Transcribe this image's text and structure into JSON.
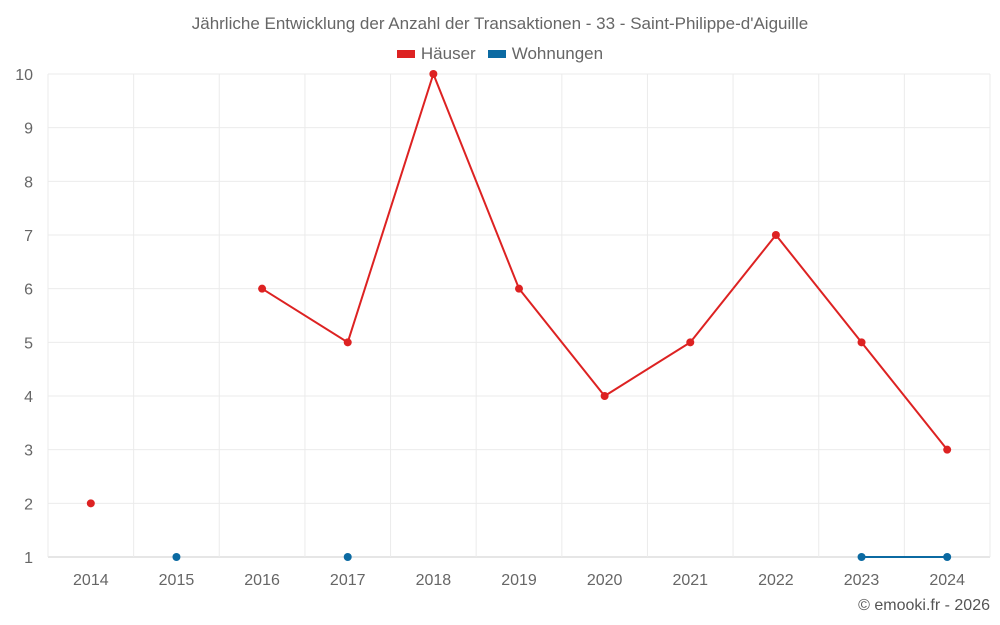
{
  "chart_data": {
    "type": "line",
    "title": "Jährliche Entwicklung der Anzahl der Transaktionen - 33 - Saint-Philippe-d'Aiguille",
    "categories": [
      "2014",
      "2015",
      "2016",
      "2017",
      "2018",
      "2019",
      "2020",
      "2021",
      "2022",
      "2023",
      "2024"
    ],
    "series": [
      {
        "name": "Häuser",
        "color": "#dd2222",
        "values": [
          2,
          null,
          6,
          5,
          10,
          6,
          4,
          5,
          7,
          5,
          3
        ]
      },
      {
        "name": "Wohnungen",
        "color": "#0b6aa2",
        "values": [
          null,
          1,
          null,
          1,
          null,
          null,
          null,
          null,
          null,
          1,
          1
        ]
      }
    ],
    "ylim": [
      1,
      10
    ],
    "yticks": [
      1,
      2,
      3,
      4,
      5,
      6,
      7,
      8,
      9,
      10
    ],
    "xlabel": "",
    "ylabel": "",
    "grid": true,
    "legend": "top-center"
  },
  "credit": "© emooki.fr - 2026"
}
